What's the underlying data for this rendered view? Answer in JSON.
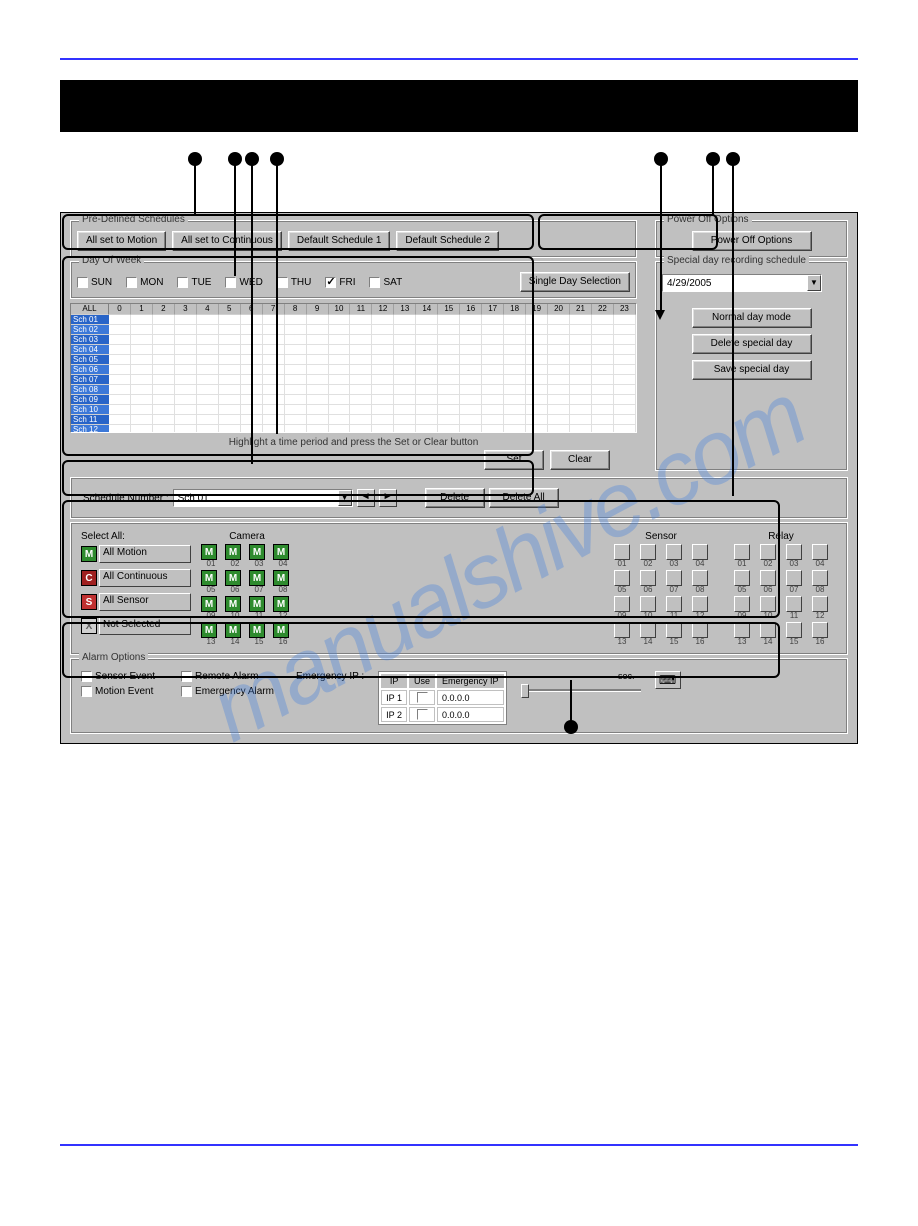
{
  "watermark": "manualshive.com",
  "predefined": {
    "legend": "Pre-Defined Schedules",
    "btn_motion": "All set to Motion",
    "btn_continuous": "All set to Continuous",
    "btn_default1": "Default Schedule 1",
    "btn_default2": "Default Schedule 2"
  },
  "poweroff": {
    "legend": "Power Off Options",
    "btn": "Power Off Options"
  },
  "dayofweek": {
    "legend": "Day Of Week",
    "days": [
      "SUN",
      "MON",
      "TUE",
      "WED",
      "THU",
      "FRI",
      "SAT"
    ],
    "checked_index": 5,
    "single_day": "Single Day Selection"
  },
  "specialday": {
    "legend": "Special day recording schedule",
    "date": "4/29/2005",
    "normal": "Normal day mode",
    "delete": "Delete special day",
    "save": "Save special day"
  },
  "schedgrid": {
    "all_header": "ALL",
    "hours": [
      "0",
      "1",
      "2",
      "3",
      "4",
      "5",
      "6",
      "7",
      "8",
      "9",
      "10",
      "11",
      "12",
      "13",
      "14",
      "15",
      "16",
      "17",
      "18",
      "19",
      "20",
      "21",
      "22",
      "23"
    ],
    "rows": [
      "Sch 01",
      "Sch 02",
      "Sch 03",
      "Sch 04",
      "Sch 05",
      "Sch 06",
      "Sch 07",
      "Sch 08",
      "Sch 09",
      "Sch 10",
      "Sch 11",
      "Sch 12"
    ],
    "row_colors": [
      "#2864c8",
      "#3c78d8",
      "#2864c8",
      "#3c78d8",
      "#2864c8",
      "#3c78d8",
      "#2864c8",
      "#3c78d8",
      "#2864c8",
      "#3c78d8",
      "#2864c8",
      "#3c78d8"
    ],
    "hint": "Highlight a time period and press the Set or Clear button",
    "set_btn": "Set",
    "clear_btn": "Clear"
  },
  "schednum": {
    "label": "Schedule Number :",
    "value": "Sch 01",
    "delete": "Delete",
    "delete_all": "Delete All"
  },
  "selectall": {
    "legend": "Select All:",
    "camera_legend": "Camera",
    "sensor_legend": "Sensor",
    "relay_legend": "Relay",
    "motion": "All Motion",
    "continuous": "All Continuous",
    "sensor": "All Sensor",
    "notselected": "Not Selected",
    "cam_numbers": [
      "01",
      "02",
      "03",
      "04",
      "05",
      "06",
      "07",
      "08",
      "09",
      "10",
      "11",
      "12",
      "13",
      "14",
      "15",
      "16"
    ],
    "sr_numbers": [
      "01",
      "02",
      "03",
      "04",
      "05",
      "06",
      "07",
      "08",
      "09",
      "10",
      "11",
      "12",
      "13",
      "14",
      "15",
      "16"
    ]
  },
  "alarm": {
    "legend": "Alarm Options",
    "sensor_event": "Sensor Event",
    "motion_event": "Motion Event",
    "remote_alarm": "Remote Alarm",
    "emergency_alarm": "Emergency Alarm",
    "emergency_ip_label": "Emergency IP :",
    "ip_header": "IP",
    "use_header": "Use",
    "eip_header": "Emergency IP",
    "ip1": "IP 1",
    "ip2": "IP 2",
    "value1": "0.0.0.0",
    "value2": "0.0.0.0",
    "sec_label": "sec."
  },
  "colors": {
    "page_rule": "#3333ff",
    "window_bg": "#c0c0c0",
    "motion_icon": "#2e8b2e",
    "cont_icon": "#a02020",
    "sensor_icon": "#c03030"
  }
}
